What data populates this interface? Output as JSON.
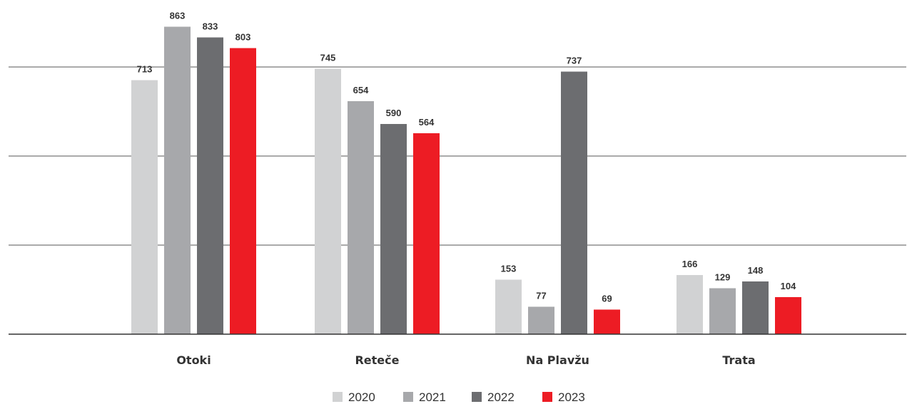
{
  "chart_data": {
    "type": "bar",
    "categories": [
      "Otoki",
      "Reteče",
      "Na Plavžu",
      "Trata"
    ],
    "series": [
      {
        "name": "2020",
        "color": "#d1d2d3",
        "values": [
          713,
          745,
          153,
          166
        ]
      },
      {
        "name": "2021",
        "color": "#a7a8ab",
        "values": [
          863,
          654,
          77,
          129
        ]
      },
      {
        "name": "2022",
        "color": "#6c6d70",
        "values": [
          833,
          590,
          737,
          148
        ]
      },
      {
        "name": "2023",
        "color": "#ed1c24",
        "values": [
          803,
          564,
          69,
          104
        ]
      }
    ],
    "ylim": [
      0,
      900
    ],
    "grid": true,
    "legend_position": "bottom-center"
  }
}
